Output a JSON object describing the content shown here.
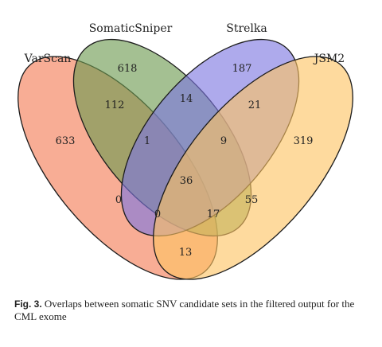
{
  "sets": [
    {
      "name": "VarScan",
      "color": "#f47a54"
    },
    {
      "name": "SomaticSniper",
      "color": "#6c9a4f"
    },
    {
      "name": "Strelka",
      "color": "#7c76e0"
    },
    {
      "name": "JSM2",
      "color": "#fdc463"
    }
  ],
  "regions": [
    {
      "sets": [
        "VarScan"
      ],
      "count": "633"
    },
    {
      "sets": [
        "SomaticSniper"
      ],
      "count": "618"
    },
    {
      "sets": [
        "Strelka"
      ],
      "count": "187"
    },
    {
      "sets": [
        "JSM2"
      ],
      "count": "319"
    },
    {
      "sets": [
        "VarScan",
        "SomaticSniper"
      ],
      "count": "112"
    },
    {
      "sets": [
        "SomaticSniper",
        "Strelka"
      ],
      "count": "14"
    },
    {
      "sets": [
        "Strelka",
        "JSM2"
      ],
      "count": "21"
    },
    {
      "sets": [
        "VarScan",
        "SomaticSniper",
        "Strelka"
      ],
      "count": "1"
    },
    {
      "sets": [
        "SomaticSniper",
        "Strelka",
        "JSM2"
      ],
      "count": "9"
    },
    {
      "sets": [
        "VarScan",
        "Strelka"
      ],
      "count": "0"
    },
    {
      "sets": [
        "VarScan",
        "SomaticSniper",
        "Strelka",
        "JSM2"
      ],
      "count": "36"
    },
    {
      "sets": [
        "SomaticSniper",
        "JSM2"
      ],
      "count": "55"
    },
    {
      "sets": [
        "VarScan",
        "Strelka",
        "JSM2"
      ],
      "count": "0"
    },
    {
      "sets": [
        "VarScan",
        "SomaticSniper",
        "JSM2"
      ],
      "count": "17"
    },
    {
      "sets": [
        "VarScan",
        "JSM2"
      ],
      "count": "13"
    }
  ],
  "caption": {
    "label": "Fig. 3.",
    "text": "Overlaps between somatic SNV candidate sets in the filtered output for the CML exome"
  }
}
